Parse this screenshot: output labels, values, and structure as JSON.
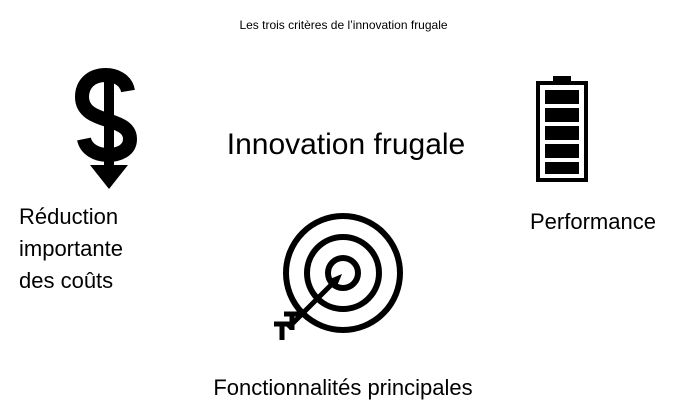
{
  "caption": "Les trois critères de l’innovation frugale",
  "center_title": "Innovation frugale",
  "criteria": [
    {
      "icon": "dollar-down-arrow-icon",
      "label": "Réduction\nimportante\ndes coûts"
    },
    {
      "icon": "battery-full-icon",
      "label": "Performance"
    },
    {
      "icon": "target-arrow-icon",
      "label": "Fonctionnalités principales"
    }
  ],
  "colors": {
    "foreground": "#000000",
    "background": "#ffffff"
  }
}
